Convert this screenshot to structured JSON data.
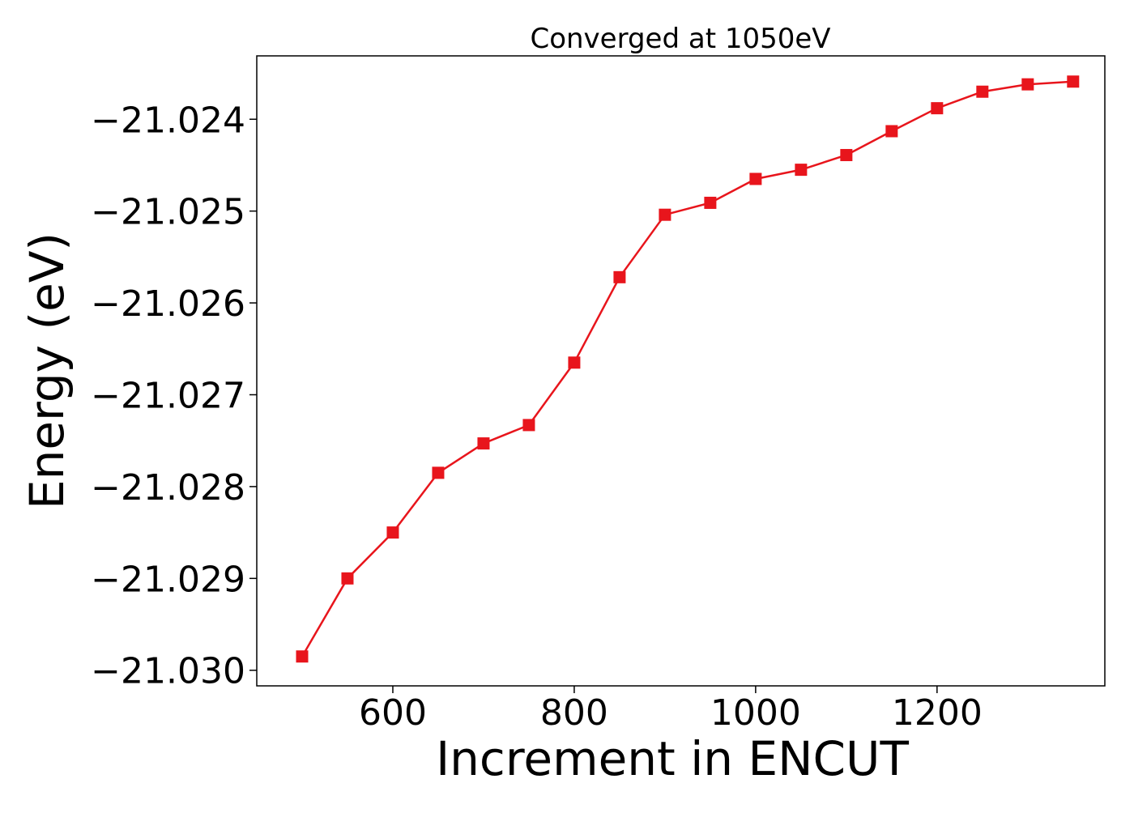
{
  "chart_data": {
    "type": "line",
    "title": "Converged at 1050eV",
    "xlabel": "Increment in ENCUT",
    "ylabel": "Energy (eV)",
    "xlim": [
      450,
      1385
    ],
    "ylim": [
      -21.03017,
      -21.02331
    ],
    "x_ticks": [
      600,
      800,
      1000,
      1200
    ],
    "x_tick_labels": [
      "600",
      "800",
      "1000",
      "1200"
    ],
    "y_ticks": [
      -21.024,
      -21.025,
      -21.026,
      -21.027,
      -21.028,
      -21.029,
      -21.03
    ],
    "y_tick_labels": [
      "−21.024",
      "−21.025",
      "−21.026",
      "−21.027",
      "−21.028",
      "−21.029",
      "−21.030"
    ],
    "grid": false,
    "series": [
      {
        "color": "#e8151c",
        "marker": "square",
        "x": [
          500,
          550,
          600,
          650,
          700,
          750,
          800,
          850,
          900,
          950,
          1000,
          1050,
          1100,
          1150,
          1200,
          1250,
          1300,
          1350
        ],
        "y": [
          -21.02985,
          -21.029,
          -21.0285,
          -21.02785,
          -21.02753,
          -21.02733,
          -21.02665,
          -21.02572,
          -21.02504,
          -21.02491,
          -21.02465,
          -21.02455,
          -21.02439,
          -21.02413,
          -21.02388,
          -21.0237,
          -21.02362,
          -21.02359
        ]
      }
    ]
  }
}
